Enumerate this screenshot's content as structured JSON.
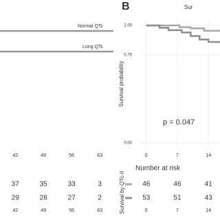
{
  "chart_data": [
    {
      "type": "line",
      "annotations": [
        "Normal QTc",
        "Long QTc"
      ],
      "xlim": [
        38.2,
        66.4
      ],
      "xticks": [
        42,
        49,
        56,
        63
      ],
      "color": "#9a9a9a",
      "risk_table": {
        "rows": [
          {
            "values": [
              37,
              35,
              33,
              3
            ]
          },
          {
            "values": [
              29,
              28,
              27,
              2
            ]
          }
        ]
      }
    },
    {
      "type": "step",
      "label": "B",
      "title": "Sur",
      "y_label": "Survival probability",
      "p_value": "p = 0.047",
      "xlim": [
        -1.2,
        16.6
      ],
      "xticks": [
        0,
        7,
        14
      ],
      "ylim": [
        0,
        1
      ],
      "yticks": [
        {
          "value": 1,
          "label": "1.00"
        },
        {
          "value": 0.75,
          "label": "0.75"
        },
        {
          "value": 0,
          "label": "0.00"
        }
      ],
      "grid": true,
      "series": [
        {
          "color": "#a8a8a8",
          "x": [
            0,
            7.5,
            10,
            13,
            16.6
          ],
          "values": [
            1,
            0.985,
            0.975,
            0.955,
            0.95
          ]
        },
        {
          "color": "#8c8c8c",
          "x": [
            0,
            3,
            5,
            8,
            10,
            12,
            14,
            16.6
          ],
          "values": [
            1,
            0.98,
            0.96,
            0.94,
            0.91,
            0.88,
            0.86,
            0.85
          ]
        }
      ],
      "risk_table": {
        "title": "Number at risk",
        "y_label": "Survival by QTc-II",
        "rows": [
          {
            "values": [
              46,
              46,
              41
            ]
          },
          {
            "values": [
              53,
              51,
              43
            ]
          }
        ]
      }
    }
  ]
}
